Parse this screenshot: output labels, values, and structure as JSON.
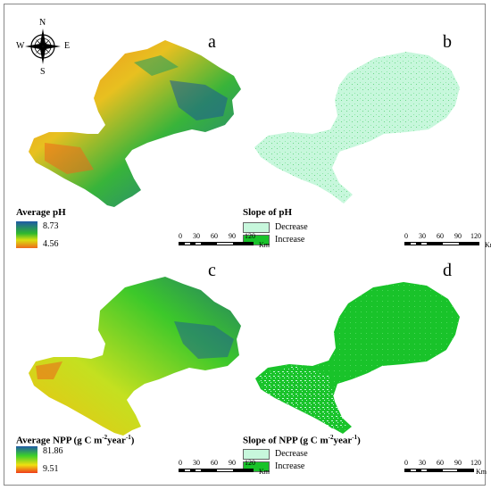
{
  "compass": {
    "n": "N",
    "s": "S",
    "e": "E",
    "w": "W"
  },
  "panels": {
    "a": {
      "letter": "a"
    },
    "b": {
      "letter": "b"
    },
    "c": {
      "letter": "c"
    },
    "d": {
      "letter": "d"
    }
  },
  "legend_ph": {
    "title": "Average  pH",
    "max": "8.73",
    "min": "4.56"
  },
  "legend_slope_ph": {
    "title": "Slope of pH",
    "decrease": "Decrease",
    "increase": "Increase"
  },
  "legend_npp": {
    "title_main": "Average  NPP (g C m",
    "title_sup1": "-2",
    "title_mid": "year",
    "title_sup2": "-1",
    "title_end": ")",
    "max": "81.86",
    "min": "9.51"
  },
  "legend_slope_npp": {
    "title_main": "Slope of NPP (g C m",
    "title_sup1": "-2",
    "title_mid": "year",
    "title_sup2": "-1",
    "title_end": ")",
    "decrease": "Decrease",
    "increase": "Increase"
  },
  "scalebar": {
    "ticks": [
      "0",
      "30",
      "60",
      "90",
      "120"
    ],
    "unit": "Km"
  },
  "colors": {
    "ph_high": "#1f5aa6",
    "ph_mid": "#2eb82e",
    "ph_low_mid": "#d8e010",
    "ph_low": "#ef6a1c",
    "slope_decrease": "#c7f7dc",
    "slope_increase": "#19c32a",
    "npp_high": "#1f5aa6",
    "npp_mid": "#3ccf2a",
    "npp_low": "#f0e010",
    "npp_min": "#ef3a1a"
  }
}
